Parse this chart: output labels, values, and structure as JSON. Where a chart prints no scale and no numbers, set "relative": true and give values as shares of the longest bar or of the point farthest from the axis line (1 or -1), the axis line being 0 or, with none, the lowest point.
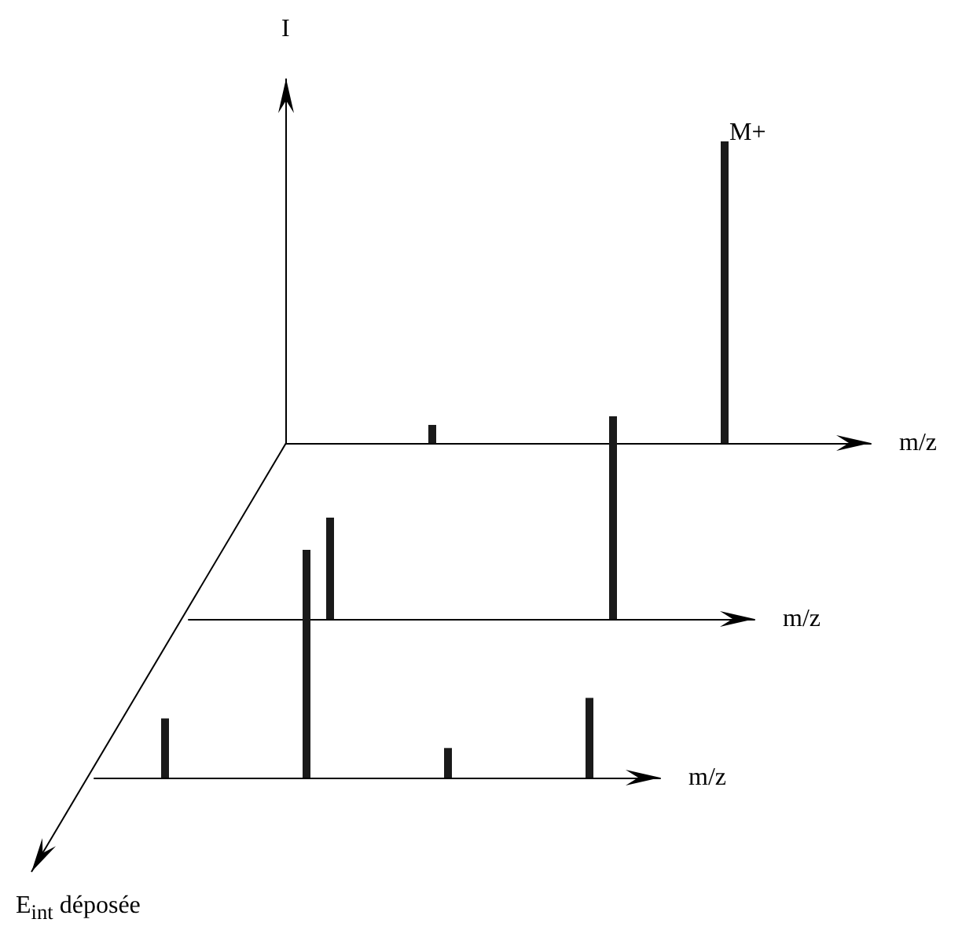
{
  "chart_data": [
    {
      "type": "bar",
      "relative": true,
      "ylabel": "I",
      "xlabel": "m/z",
      "annotations": [
        "M+"
      ],
      "color": "#1a1a1a",
      "categories": [
        null,
        null
      ],
      "values": [
        0.06,
        1
      ]
    },
    {
      "type": "bar",
      "relative": true,
      "xlabel": "m/z",
      "color": "#1a1a1a",
      "categories": [
        null,
        null
      ],
      "values": [
        0.5,
        1
      ]
    },
    {
      "type": "bar",
      "relative": true,
      "xlabel": "m/z",
      "annotations": [
        "E$_{int}$ déposée"
      ],
      "color": "#1a1a1a",
      "categories": [
        null,
        null,
        null,
        null
      ],
      "values": [
        0.26,
        1,
        0.13,
        0.35
      ]
    }
  ]
}
